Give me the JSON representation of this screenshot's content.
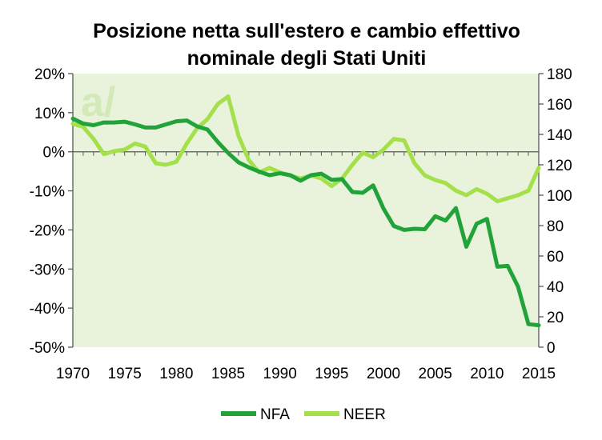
{
  "chart_data": {
    "type": "line",
    "title": "Posizione netta sull'estero e cambio effettivo nominale degli Stati Uniti",
    "title_lines": [
      "Posizione netta sull'estero e cambio effettivo",
      "nominale degli Stati Uniti"
    ],
    "watermark": "a/",
    "x": [
      1970,
      1971,
      1972,
      1973,
      1974,
      1975,
      1976,
      1977,
      1978,
      1979,
      1980,
      1981,
      1982,
      1983,
      1984,
      1985,
      1986,
      1987,
      1988,
      1989,
      1990,
      1991,
      1992,
      1993,
      1994,
      1995,
      1996,
      1997,
      1998,
      1999,
      2000,
      2001,
      2002,
      2003,
      2004,
      2005,
      2006,
      2007,
      2008,
      2009,
      2010,
      2011,
      2012,
      2013,
      2014,
      2015
    ],
    "xlim": [
      1970,
      2015
    ],
    "xticks": [
      1970,
      1975,
      1980,
      1985,
      1990,
      1995,
      2000,
      2005,
      2010,
      2015
    ],
    "xtick_labels": [
      "1970",
      "1975",
      "1980",
      "1985",
      "1990",
      "1995",
      "2000",
      "2005",
      "2010",
      "2015"
    ],
    "y_left": {
      "min": -50,
      "max": 20,
      "ticks": [
        20,
        10,
        0,
        -10,
        -20,
        -30,
        -40,
        -50
      ],
      "tick_labels": [
        "20%",
        "10%",
        "0%",
        "-10%",
        "-20%",
        "-30%",
        "-40%",
        "-50%"
      ]
    },
    "y_right": {
      "min": 0,
      "max": 180,
      "ticks": [
        180,
        160,
        140,
        120,
        100,
        80,
        60,
        40,
        20,
        0
      ],
      "tick_labels": [
        "180",
        "160",
        "140",
        "120",
        "100",
        "80",
        "60",
        "40",
        "20",
        "0"
      ]
    },
    "legend_position": "bottom-center",
    "background_color": "#e9f3dc",
    "series": [
      {
        "name": "NFA",
        "axis": "left",
        "color": "#22a33a",
        "values": [
          8.5,
          7.2,
          6.8,
          7.5,
          7.5,
          7.7,
          7.0,
          6.2,
          6.2,
          7.0,
          7.8,
          8.0,
          6.5,
          5.7,
          2.5,
          -0.3,
          -2.7,
          -4.0,
          -5.1,
          -6.0,
          -5.5,
          -6.0,
          -7.4,
          -6.0,
          -5.6,
          -7.2,
          -7.0,
          -10.3,
          -10.5,
          -8.6,
          -14.5,
          -19.0,
          -20.0,
          -19.7,
          -19.8,
          -16.5,
          -17.6,
          -14.4,
          -24.3,
          -18.4,
          -17.2,
          -29.4,
          -29.2,
          -34.5,
          -44.1,
          -44.4
        ]
      },
      {
        "name": "NEER",
        "axis": "right",
        "color": "#a3e04a",
        "values": [
          147,
          145,
          137,
          127,
          129,
          130,
          134,
          132,
          121,
          120,
          122,
          134,
          144,
          150,
          160,
          165,
          139,
          123,
          115,
          118,
          115,
          113,
          111,
          113,
          111,
          106,
          111,
          120,
          128,
          125,
          130,
          137,
          136,
          121,
          113,
          110,
          108,
          103,
          100,
          104,
          101,
          96,
          98,
          100,
          103,
          118
        ]
      }
    ]
  }
}
